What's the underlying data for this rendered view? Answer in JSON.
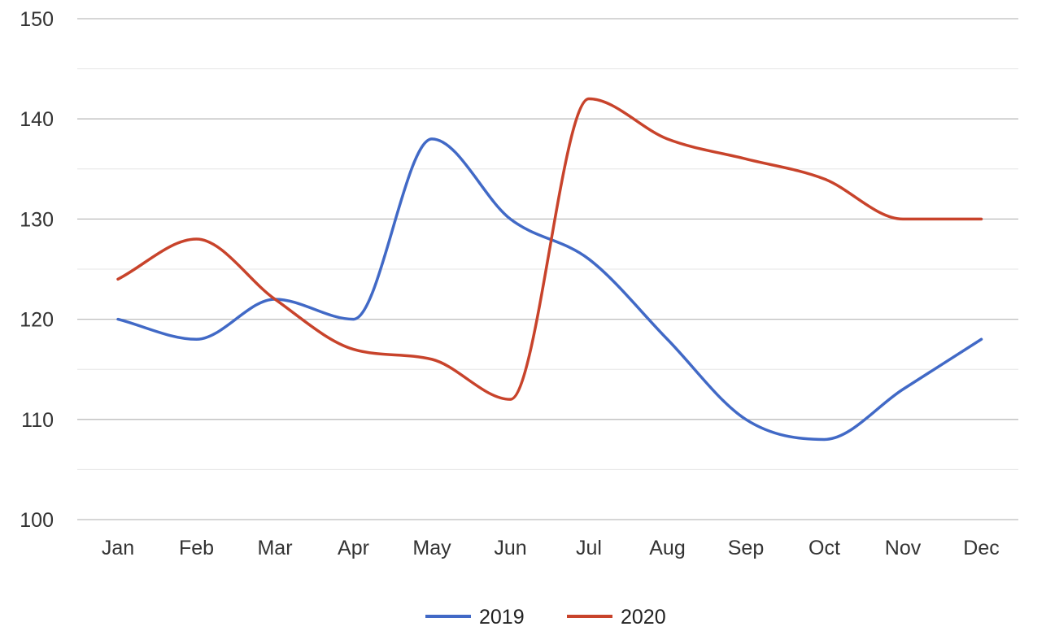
{
  "chart_data": {
    "type": "line",
    "title": "",
    "xlabel": "",
    "ylabel": "",
    "categories": [
      "Jan",
      "Feb",
      "Mar",
      "Apr",
      "May",
      "Jun",
      "Jul",
      "Aug",
      "Sep",
      "Oct",
      "Nov",
      "Dec"
    ],
    "ylim": [
      100,
      150
    ],
    "y_ticks": [
      "100",
      "110",
      "120",
      "130",
      "140",
      "150"
    ],
    "major_tick_step": 10,
    "minor_tick_step": 5,
    "grid": true,
    "smooth": true,
    "legend_position": "bottom",
    "series": [
      {
        "name": "2019",
        "color": "#4169c6",
        "values": [
          120,
          118,
          122,
          120,
          138,
          130,
          126,
          118,
          110,
          108,
          113,
          118
        ]
      },
      {
        "name": "2020",
        "color": "#c8432b",
        "values": [
          124,
          128,
          122,
          117,
          116,
          112,
          142,
          138,
          136,
          134,
          130,
          130
        ]
      }
    ]
  }
}
